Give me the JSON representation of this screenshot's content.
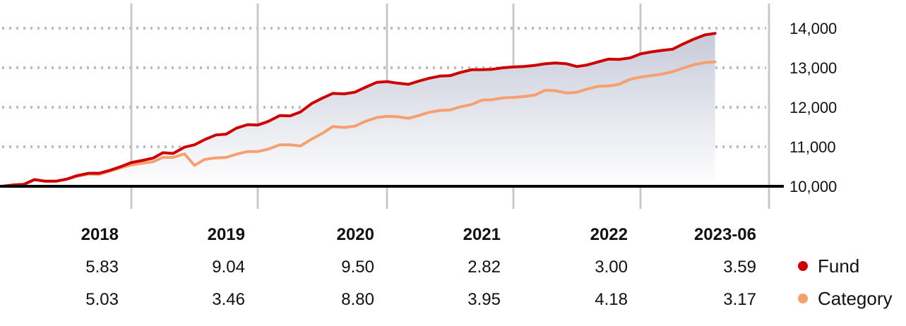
{
  "colors": {
    "fund": "#cc0000",
    "category": "#f5a06e",
    "grid": "#bdbdbd",
    "baseline": "#000000",
    "area_top": "#c7cad9",
    "area_bottom": "#ffffff"
  },
  "legend": [
    {
      "label": "Fund",
      "color": "#cc0000"
    },
    {
      "label": "Category",
      "color": "#f5a06e"
    }
  ],
  "returns": {
    "years": [
      "2018",
      "2019",
      "2020",
      "2021",
      "2022",
      "2023-06"
    ],
    "fund": [
      "5.83",
      "9.04",
      "9.50",
      "2.82",
      "3.00",
      "3.59"
    ],
    "category": [
      "5.03",
      "3.46",
      "8.80",
      "3.95",
      "4.18",
      "3.17"
    ]
  },
  "chart_data": {
    "type": "line",
    "title": "",
    "xlabel": "",
    "ylabel": "",
    "ylim": [
      10000,
      14000
    ],
    "yticks": [
      "10,000",
      "11,000",
      "12,000",
      "13,000",
      "14,000"
    ],
    "ytick_values": [
      10000,
      11000,
      12000,
      13000,
      14000
    ],
    "x_range": [
      2017.0,
      2023.5
    ],
    "year_boundaries": [
      2018,
      2019,
      2020,
      2021,
      2022,
      2023
    ],
    "y_axis_side": "right",
    "grid": "horizontal dotted, vertical solid",
    "legend_position": "bottom-right",
    "series": [
      {
        "name": "Fund",
        "color": "#cc0000",
        "filled": true,
        "points": [
          [
            2017.0,
            10000
          ],
          [
            2017.08,
            10030
          ],
          [
            2017.17,
            10050
          ],
          [
            2017.25,
            10170
          ],
          [
            2017.33,
            10130
          ],
          [
            2017.42,
            10130
          ],
          [
            2017.5,
            10180
          ],
          [
            2017.58,
            10270
          ],
          [
            2017.67,
            10330
          ],
          [
            2017.75,
            10330
          ],
          [
            2017.83,
            10400
          ],
          [
            2017.92,
            10500
          ],
          [
            2018.0,
            10600
          ],
          [
            2018.08,
            10650
          ],
          [
            2018.17,
            10710
          ],
          [
            2018.25,
            10850
          ],
          [
            2018.33,
            10830
          ],
          [
            2018.42,
            10990
          ],
          [
            2018.5,
            11050
          ],
          [
            2018.58,
            11180
          ],
          [
            2018.67,
            11300
          ],
          [
            2018.75,
            11320
          ],
          [
            2018.83,
            11470
          ],
          [
            2018.92,
            11560
          ],
          [
            2019.0,
            11550
          ],
          [
            2019.08,
            11640
          ],
          [
            2019.17,
            11790
          ],
          [
            2019.25,
            11780
          ],
          [
            2019.33,
            11880
          ],
          [
            2019.42,
            12100
          ],
          [
            2019.5,
            12230
          ],
          [
            2019.58,
            12350
          ],
          [
            2019.67,
            12340
          ],
          [
            2019.75,
            12380
          ],
          [
            2019.83,
            12500
          ],
          [
            2019.92,
            12630
          ],
          [
            2020.0,
            12650
          ],
          [
            2020.08,
            12610
          ],
          [
            2020.17,
            12580
          ],
          [
            2020.25,
            12660
          ],
          [
            2020.33,
            12730
          ],
          [
            2020.42,
            12790
          ],
          [
            2020.5,
            12800
          ],
          [
            2020.58,
            12880
          ],
          [
            2020.67,
            12950
          ],
          [
            2020.75,
            12950
          ],
          [
            2020.83,
            12960
          ],
          [
            2020.92,
            13000
          ],
          [
            2021.0,
            13020
          ],
          [
            2021.08,
            13030
          ],
          [
            2021.17,
            13060
          ],
          [
            2021.25,
            13100
          ],
          [
            2021.33,
            13120
          ],
          [
            2021.42,
            13100
          ],
          [
            2021.5,
            13030
          ],
          [
            2021.58,
            13070
          ],
          [
            2021.67,
            13150
          ],
          [
            2021.75,
            13220
          ],
          [
            2021.83,
            13210
          ],
          [
            2021.92,
            13250
          ],
          [
            2022.0,
            13350
          ],
          [
            2022.08,
            13400
          ],
          [
            2022.17,
            13440
          ],
          [
            2022.25,
            13470
          ],
          [
            2022.33,
            13600
          ],
          [
            2022.42,
            13730
          ],
          [
            2022.5,
            13830
          ],
          [
            2022.58,
            13870
          ]
        ]
      },
      {
        "name": "Category",
        "color": "#f5a06e",
        "filled": false,
        "points": [
          [
            2017.0,
            10000
          ],
          [
            2017.08,
            10030
          ],
          [
            2017.17,
            10050
          ],
          [
            2017.25,
            10170
          ],
          [
            2017.33,
            10130
          ],
          [
            2017.42,
            10130
          ],
          [
            2017.5,
            10180
          ],
          [
            2017.58,
            10250
          ],
          [
            2017.67,
            10310
          ],
          [
            2017.75,
            10300
          ],
          [
            2017.83,
            10380
          ],
          [
            2017.92,
            10470
          ],
          [
            2018.0,
            10540
          ],
          [
            2018.08,
            10580
          ],
          [
            2018.17,
            10620
          ],
          [
            2018.25,
            10730
          ],
          [
            2018.33,
            10730
          ],
          [
            2018.42,
            10820
          ],
          [
            2018.5,
            10530
          ],
          [
            2018.58,
            10680
          ],
          [
            2018.67,
            10720
          ],
          [
            2018.75,
            10730
          ],
          [
            2018.83,
            10810
          ],
          [
            2018.92,
            10880
          ],
          [
            2019.0,
            10880
          ],
          [
            2019.08,
            10940
          ],
          [
            2019.17,
            11050
          ],
          [
            2019.25,
            11050
          ],
          [
            2019.33,
            11020
          ],
          [
            2019.42,
            11200
          ],
          [
            2019.5,
            11340
          ],
          [
            2019.58,
            11510
          ],
          [
            2019.67,
            11490
          ],
          [
            2019.75,
            11520
          ],
          [
            2019.83,
            11640
          ],
          [
            2019.92,
            11740
          ],
          [
            2020.0,
            11770
          ],
          [
            2020.08,
            11760
          ],
          [
            2020.17,
            11720
          ],
          [
            2020.25,
            11790
          ],
          [
            2020.33,
            11870
          ],
          [
            2020.42,
            11920
          ],
          [
            2020.5,
            11930
          ],
          [
            2020.58,
            12010
          ],
          [
            2020.67,
            12070
          ],
          [
            2020.75,
            12180
          ],
          [
            2020.83,
            12190
          ],
          [
            2020.92,
            12240
          ],
          [
            2021.0,
            12250
          ],
          [
            2021.08,
            12270
          ],
          [
            2021.17,
            12310
          ],
          [
            2021.25,
            12430
          ],
          [
            2021.33,
            12420
          ],
          [
            2021.42,
            12360
          ],
          [
            2021.5,
            12380
          ],
          [
            2021.58,
            12460
          ],
          [
            2021.67,
            12530
          ],
          [
            2021.75,
            12540
          ],
          [
            2021.83,
            12580
          ],
          [
            2021.92,
            12710
          ],
          [
            2022.0,
            12760
          ],
          [
            2022.08,
            12800
          ],
          [
            2022.17,
            12840
          ],
          [
            2022.25,
            12900
          ],
          [
            2022.33,
            12990
          ],
          [
            2022.42,
            13080
          ],
          [
            2022.5,
            13130
          ],
          [
            2022.58,
            13150
          ]
        ]
      }
    ]
  }
}
